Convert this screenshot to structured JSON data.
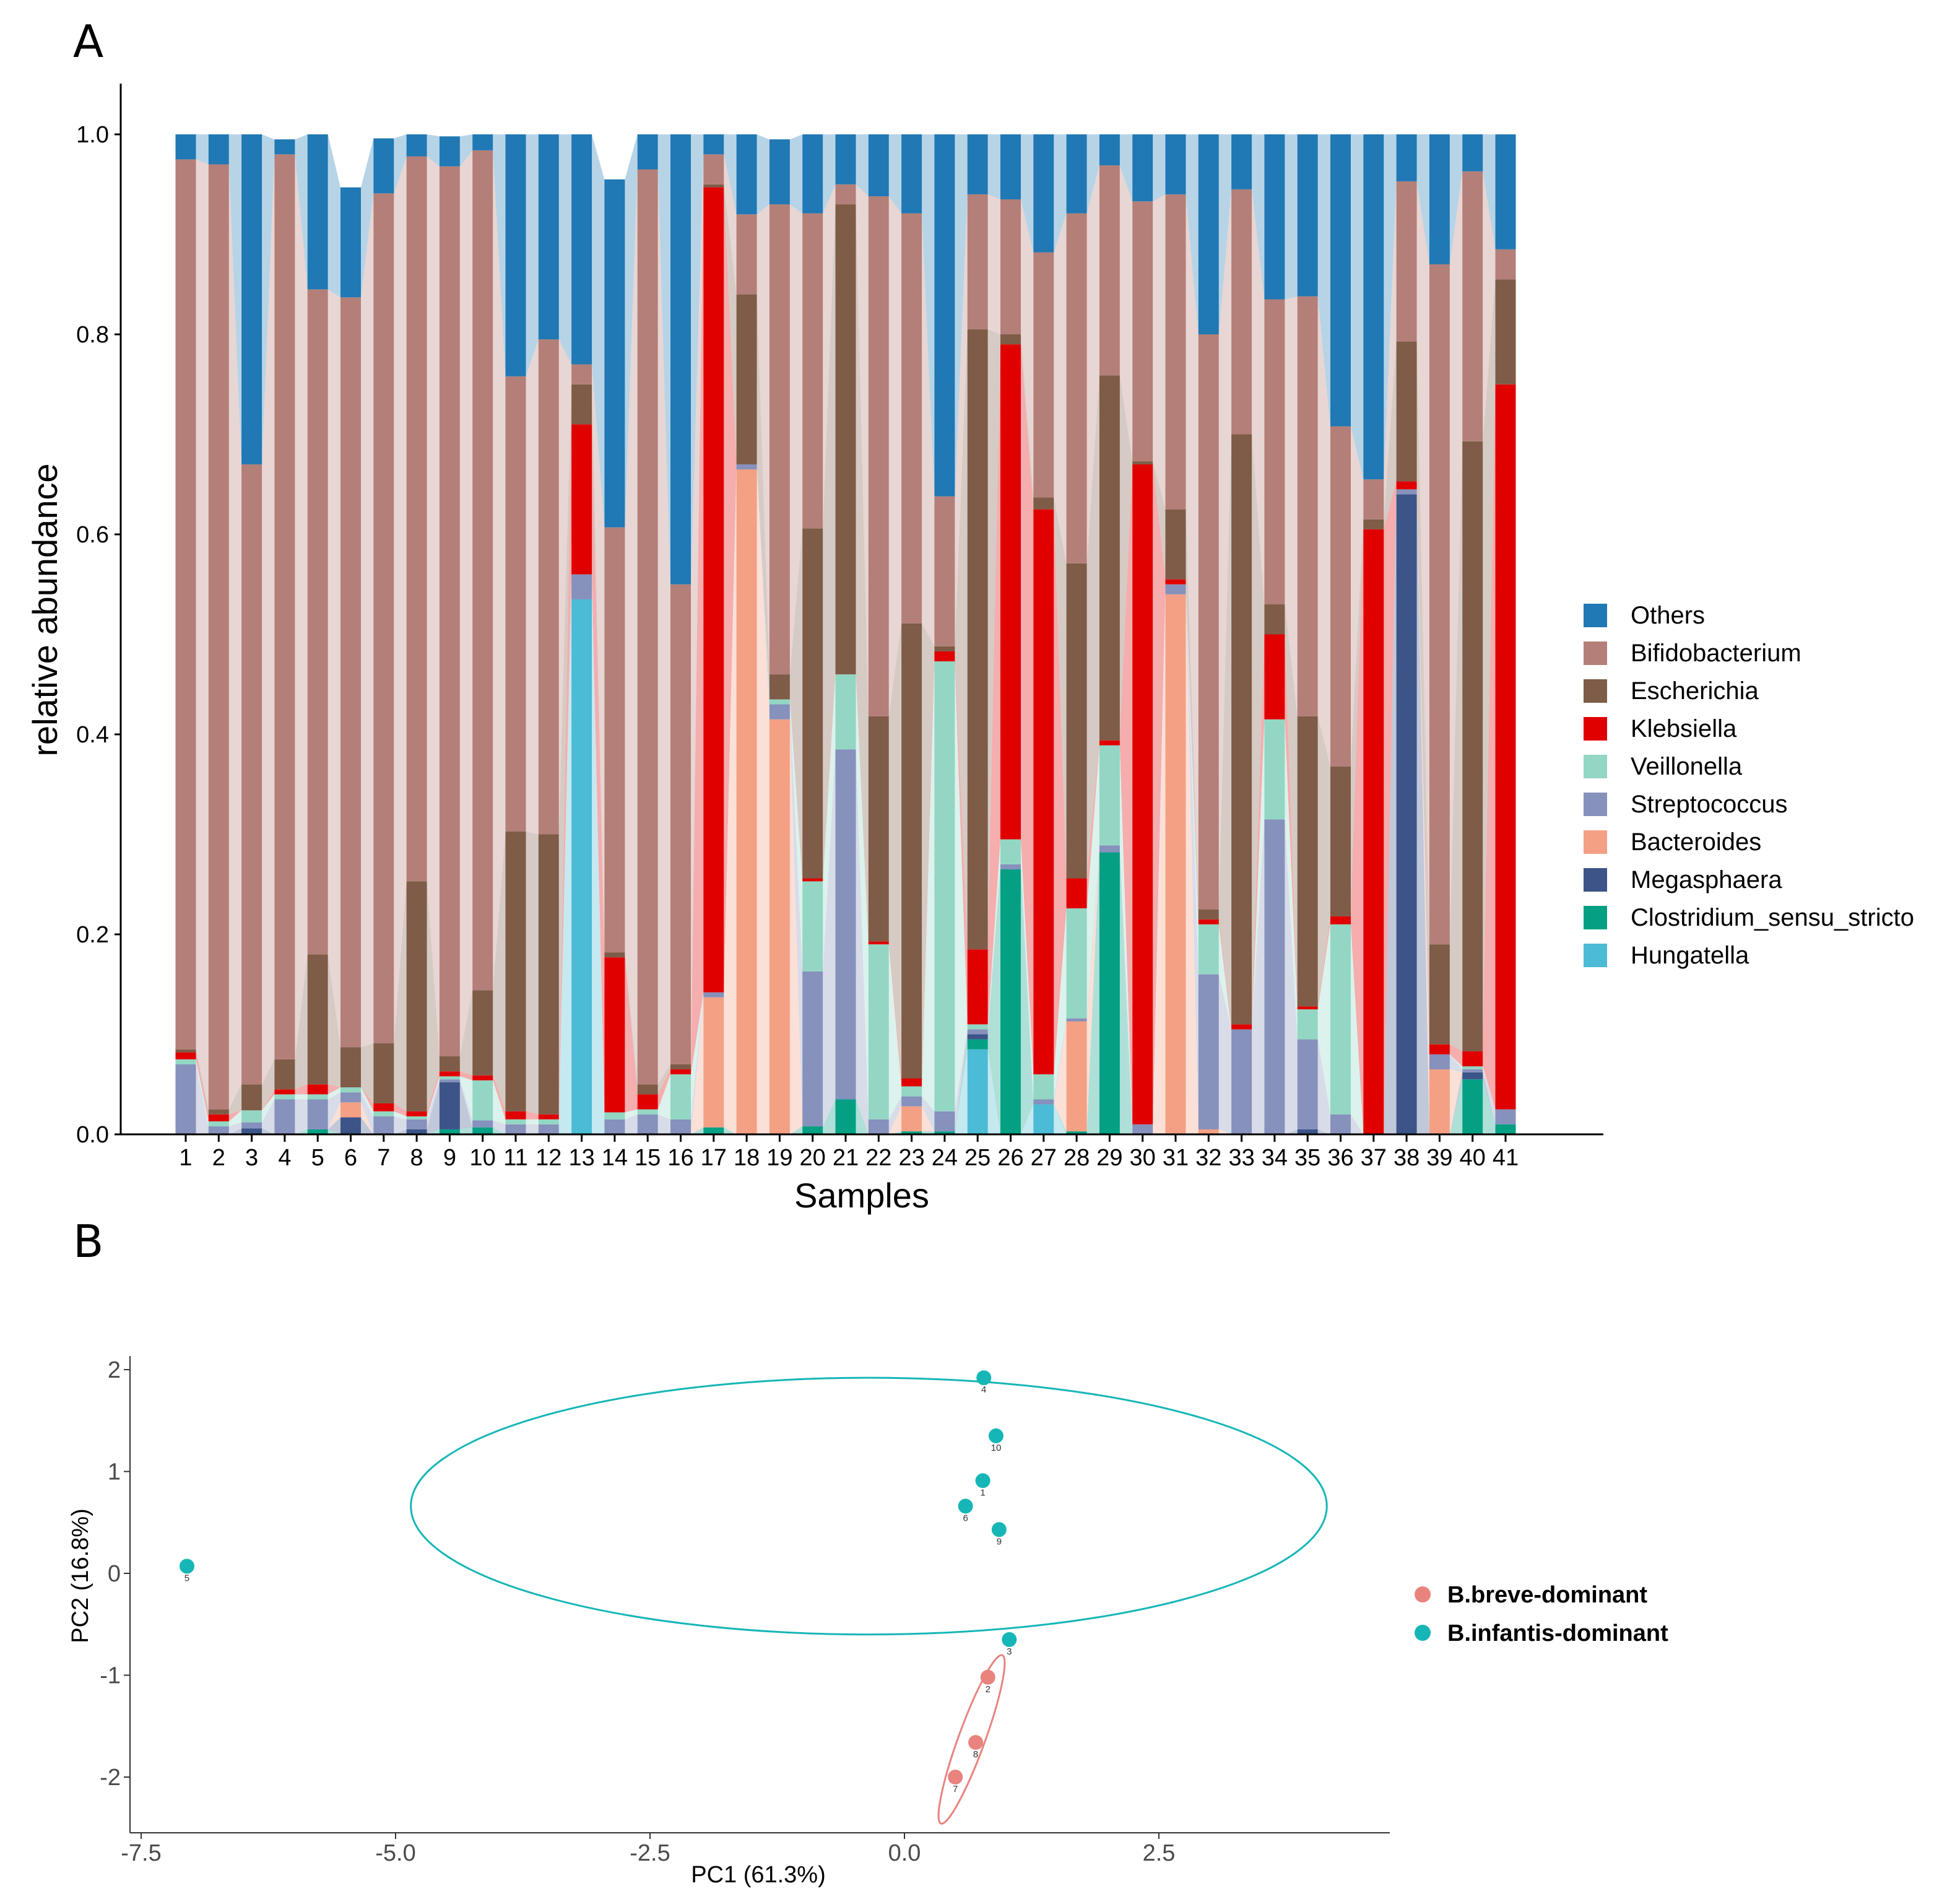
{
  "figure": {
    "panel_a_label": "A",
    "panel_b_label": "B"
  },
  "colors": {
    "Others": "#2078b4",
    "Bifidobacterium": "#b47f78",
    "Escherichia": "#7e5c47",
    "Klebsiella": "#e00000",
    "Veillonella": "#93d6c3",
    "Streptococcus": "#8691bc",
    "Bacteroides": "#f4a084",
    "Megasphaera": "#3c5488",
    "Clostridium_sensu_stricto": "#05a084",
    "Hungatella": "#4cbbd5",
    "breve": "#e8837e",
    "infantis": "#16b6b6"
  },
  "chart_data": [
    {
      "type": "bar",
      "stacked": true,
      "title": "",
      "xlabel": "Samples",
      "ylabel": "relative abundance",
      "ylim": [
        0,
        1.05
      ],
      "yticks": [
        0.0,
        0.2,
        0.4,
        0.6,
        0.8,
        1.0
      ],
      "ytick_labels": [
        "0.0",
        "0.2",
        "0.4",
        "0.6",
        "0.8",
        "1.0"
      ],
      "categories": [
        "1",
        "2",
        "3",
        "4",
        "5",
        "6",
        "7",
        "8",
        "9",
        "10",
        "11",
        "12",
        "13",
        "14",
        "15",
        "16",
        "17",
        "18",
        "19",
        "20",
        "21",
        "22",
        "23",
        "24",
        "25",
        "26",
        "27",
        "28",
        "29",
        "30",
        "31",
        "32",
        "33",
        "34",
        "35",
        "36",
        "37",
        "38",
        "39",
        "40",
        "41"
      ],
      "legend_position": "right",
      "series": [
        {
          "name": "Hungatella",
          "values": [
            0,
            0,
            0,
            0,
            0,
            0,
            0,
            0,
            0,
            0,
            0,
            0,
            0.535,
            0,
            0,
            0,
            0,
            0,
            0,
            0,
            0,
            0,
            0,
            0,
            0.085,
            0,
            0.03,
            0,
            0,
            0,
            0,
            0,
            0,
            0,
            0,
            0,
            0,
            0,
            0,
            0,
            0
          ]
        },
        {
          "name": "Clostridium_sensu_stricto",
          "values": [
            0,
            0,
            0,
            0,
            0.005,
            0,
            0,
            0,
            0.005,
            0.007,
            0,
            0,
            0,
            0,
            0,
            0,
            0.007,
            0,
            0,
            0.008,
            0.035,
            0,
            0.003,
            0.003,
            0.01,
            0.265,
            0,
            0.003,
            0.282,
            0,
            0,
            0,
            0,
            0,
            0,
            0,
            0,
            0,
            0,
            0.055,
            0.01
          ]
        },
        {
          "name": "Megasphaera",
          "values": [
            0,
            0,
            0.006,
            0,
            0,
            0.017,
            0,
            0.005,
            0.047,
            0,
            0,
            0,
            0,
            0,
            0,
            0,
            0,
            0,
            0,
            0,
            0,
            0,
            0,
            0,
            0.005,
            0,
            0,
            0,
            0,
            0,
            0,
            0,
            0,
            0,
            0.005,
            0,
            0,
            0.64,
            0,
            0.007,
            0
          ]
        },
        {
          "name": "Bacteroides",
          "values": [
            0,
            0,
            0,
            0,
            0,
            0.015,
            0,
            0,
            0,
            0,
            0,
            0,
            0,
            0,
            0,
            0,
            0.13,
            0.665,
            0.415,
            0,
            0,
            0,
            0.025,
            0,
            0,
            0,
            0,
            0.11,
            0,
            0,
            0.54,
            0.005,
            0,
            0,
            0,
            0,
            0,
            0,
            0.065,
            0,
            0
          ]
        },
        {
          "name": "Streptococcus",
          "values": [
            0.07,
            0.008,
            0.006,
            0.035,
            0.03,
            0.01,
            0.018,
            0.01,
            0.003,
            0.007,
            0.01,
            0.01,
            0.025,
            0.015,
            0.02,
            0.015,
            0.005,
            0.005,
            0.015,
            0.155,
            0.35,
            0.015,
            0.01,
            0.02,
            0.005,
            0.005,
            0.005,
            0.003,
            0.007,
            0.01,
            0.01,
            0.155,
            0.105,
            0.315,
            0.09,
            0.02,
            0,
            0.005,
            0.015,
            0.003,
            0.015
          ]
        },
        {
          "name": "Veillonella",
          "values": [
            0.005,
            0.005,
            0.012,
            0.005,
            0.005,
            0.005,
            0.005,
            0.003,
            0.003,
            0.04,
            0.005,
            0.005,
            0,
            0.007,
            0.005,
            0.045,
            0,
            0,
            0.005,
            0.09,
            0.075,
            0.175,
            0.01,
            0.45,
            0.005,
            0.025,
            0.025,
            0.11,
            0.1,
            0,
            0,
            0.05,
            0,
            0.1,
            0.03,
            0.19,
            0,
            0,
            0,
            0.003,
            0
          ]
        },
        {
          "name": "Klebsiella",
          "values": [
            0.007,
            0.007,
            0,
            0.005,
            0.01,
            0,
            0.008,
            0.005,
            0.005,
            0.005,
            0.008,
            0.005,
            0.15,
            0.155,
            0.015,
            0.005,
            0.805,
            0,
            0,
            0.003,
            0,
            0.003,
            0.008,
            0.01,
            0.075,
            0.495,
            0.565,
            0.03,
            0.005,
            0.66,
            0.005,
            0.005,
            0.005,
            0.085,
            0.003,
            0.008,
            0.605,
            0.008,
            0.01,
            0.015,
            0.725
          ]
        },
        {
          "name": "Escherichia",
          "values": [
            0.003,
            0.005,
            0.026,
            0.03,
            0.13,
            0.04,
            0.06,
            0.23,
            0.015,
            0.085,
            0.28,
            0.28,
            0.04,
            0.005,
            0.01,
            0.005,
            0.003,
            0.17,
            0.025,
            0.35,
            0.47,
            0.225,
            0.455,
            0.005,
            0.62,
            0.01,
            0.012,
            0.315,
            0.365,
            0.003,
            0.07,
            0.01,
            0.59,
            0.03,
            0.29,
            0.15,
            0.01,
            0.14,
            0.1,
            0.61,
            0.105
          ]
        },
        {
          "name": "Bifidobacterium",
          "values": [
            0.89,
            0.945,
            0.62,
            0.905,
            0.665,
            0.75,
            0.85,
            0.725,
            0.89,
            0.84,
            0.455,
            0.495,
            0.02,
            0.425,
            0.915,
            0.48,
            0.03,
            0.08,
            0.47,
            0.315,
            0.02,
            0.52,
            0.41,
            0.15,
            0.135,
            0.135,
            0.245,
            0.35,
            0.21,
            0.26,
            0.315,
            0.575,
            0.245,
            0.305,
            0.42,
            0.34,
            0.04,
            0.16,
            0.68,
            0.27,
            0.03
          ]
        },
        {
          "name": "Others",
          "values": [
            0.025,
            0.03,
            0.33,
            0.015,
            0.155,
            0.11,
            0.055,
            0.022,
            0.03,
            0.016,
            0.242,
            0.205,
            0.23,
            0.348,
            0.035,
            0.45,
            0.02,
            0.08,
            0.065,
            0.079,
            0.05,
            0.062,
            0.079,
            0.362,
            0.06,
            0.065,
            0.118,
            0.079,
            0.031,
            0.067,
            0.06,
            0.2,
            0.055,
            0.165,
            0.162,
            0.292,
            0.345,
            0.047,
            0.13,
            0.037,
            0.115
          ]
        }
      ],
      "legend_order": [
        "Others",
        "Bifidobacterium",
        "Escherichia",
        "Klebsiella",
        "Veillonella",
        "Streptococcus",
        "Bacteroides",
        "Megasphaera",
        "Clostridium_sensu_stricto",
        "Hungatella"
      ]
    },
    {
      "type": "scatter",
      "title": "",
      "xlabel": "PC1 (61.3%)",
      "ylabel": "PC2 (16.8%)",
      "xlim": [
        -7.7,
        4.65
      ],
      "ylim": [
        -2.55,
        2.15
      ],
      "xticks": [
        -7.5,
        -5.0,
        -2.5,
        0.0,
        2.5
      ],
      "xtick_labels": [
        "-7.5",
        "-5.0",
        "-2.5",
        "0.0",
        "2.5"
      ],
      "yticks": [
        2,
        1,
        0,
        -1,
        -2
      ],
      "ytick_labels": [
        "2",
        "1",
        "0",
        "-1",
        "-2"
      ],
      "legend_position": "right",
      "series": [
        {
          "name": "B.breve-dominant",
          "points": [
            {
              "x": 0.82,
              "y": -1.02,
              "label": "2"
            },
            {
              "x": 0.7,
              "y": -1.66,
              "label": "8"
            },
            {
              "x": 0.5,
              "y": -2.0,
              "label": "7"
            }
          ]
        },
        {
          "name": "B.infantis-dominant",
          "points": [
            {
              "x": 0.78,
              "y": 1.92,
              "label": "4"
            },
            {
              "x": 0.9,
              "y": 1.35,
              "label": "10"
            },
            {
              "x": 0.77,
              "y": 0.91,
              "label": "1"
            },
            {
              "x": 0.6,
              "y": 0.66,
              "label": "6"
            },
            {
              "x": 0.93,
              "y": 0.43,
              "label": "9"
            },
            {
              "x": 1.03,
              "y": -0.65,
              "label": "3"
            },
            {
              "x": -7.05,
              "y": 0.07,
              "label": "5"
            }
          ]
        }
      ],
      "ellipses": [
        {
          "series": "B.infantis-dominant",
          "center": [
            -0.35,
            0.66
          ],
          "semi_axes": [
            4.5,
            1.26
          ],
          "angle_deg": 0
        },
        {
          "series": "B.breve-dominant",
          "center": [
            0.66,
            -1.63
          ],
          "semi_axes": [
            0.88,
            0.13
          ],
          "angle_deg": 70
        }
      ]
    }
  ]
}
